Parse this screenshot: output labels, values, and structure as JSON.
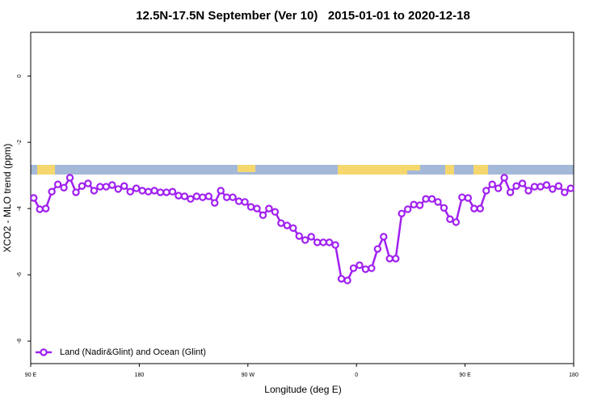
{
  "chart_data": {
    "type": "line",
    "title": "12.5N-17.5N September (Ver 10)   2015-01-01 to 2020-12-18",
    "xlabel": "Longitude (deg E)",
    "ylabel": "XCO2 - MLO trend (ppm)",
    "xlim": [
      90,
      540
    ],
    "ylim": [
      -8.68,
      1.32
    ],
    "xticks": [
      {
        "value": 90,
        "label": "90 E"
      },
      180,
      {
        "value": 270,
        "label": "90 W"
      },
      {
        "value": 360,
        "label": "0"
      },
      {
        "value": 450,
        "label": "90 E"
      },
      {
        "value": 540,
        "label": "180"
      }
    ],
    "yticks": [
      -8,
      -6,
      -4,
      -2,
      0
    ],
    "legend": "bottom-left",
    "x": [
      92.5,
      97.5,
      102.5,
      107.5,
      112.5,
      117.5,
      122.5,
      127.5,
      132.5,
      137.5,
      142.5,
      147.5,
      152.5,
      157.5,
      162.5,
      167.5,
      172.5,
      177.5,
      182.5,
      187.5,
      192.5,
      197.5,
      202.5,
      207.5,
      212.5,
      217.5,
      222.5,
      227.5,
      232.5,
      237.5,
      242.5,
      247.5,
      252.5,
      257.5,
      262.5,
      267.5,
      272.5,
      277.5,
      282.5,
      287.5,
      292.5,
      297.5,
      302.5,
      307.5,
      312.5,
      317.5,
      322.5,
      327.5,
      332.5,
      337.5,
      342.5,
      347.5,
      352.5,
      357.5,
      362.5,
      367.5,
      372.5,
      377.5,
      382.5,
      387.5,
      392.5,
      397.5,
      402.5,
      407.5,
      412.5,
      417.5,
      422.5,
      427.5,
      432.5,
      437.5,
      442.5,
      447.5,
      452.5,
      457.5,
      462.5,
      467.5,
      472.5,
      477.5,
      482.5,
      487.5,
      492.5,
      497.5,
      502.5,
      507.5,
      512.5,
      517.5,
      522.5,
      527.5,
      532.5,
      537.5
    ],
    "series": [
      {
        "name": "Land (Nadir&Glint) and Ocean (Glint)",
        "color": "#a020f0",
        "values": [
          -3.68,
          -4.02,
          -4.0,
          -3.49,
          -3.27,
          -3.37,
          -3.07,
          -3.51,
          -3.32,
          -3.24,
          -3.46,
          -3.34,
          -3.34,
          -3.29,
          -3.41,
          -3.32,
          -3.49,
          -3.39,
          -3.46,
          -3.49,
          -3.46,
          -3.51,
          -3.51,
          -3.49,
          -3.61,
          -3.63,
          -3.71,
          -3.63,
          -3.66,
          -3.63,
          -3.83,
          -3.46,
          -3.66,
          -3.66,
          -3.78,
          -3.8,
          -3.95,
          -4.0,
          -4.2,
          -4.0,
          -4.1,
          -4.44,
          -4.51,
          -4.59,
          -4.83,
          -4.95,
          -4.85,
          -5.02,
          -5.02,
          -5.02,
          -5.1,
          -6.12,
          -6.17,
          -5.8,
          -5.71,
          -5.83,
          -5.8,
          -5.22,
          -4.85,
          -5.51,
          -5.51,
          -4.15,
          -4.02,
          -3.88,
          -3.9,
          -3.71,
          -3.71,
          -3.8,
          -3.98,
          -4.32,
          -4.41,
          -3.66,
          -3.68,
          -4.0,
          -4.0,
          -3.46,
          -3.27,
          -3.39,
          -3.07,
          -3.51,
          -3.32,
          -3.24,
          -3.46,
          -3.34,
          -3.34,
          -3.29,
          -3.41,
          -3.32,
          -3.51,
          -3.39
        ]
      }
    ]
  }
}
